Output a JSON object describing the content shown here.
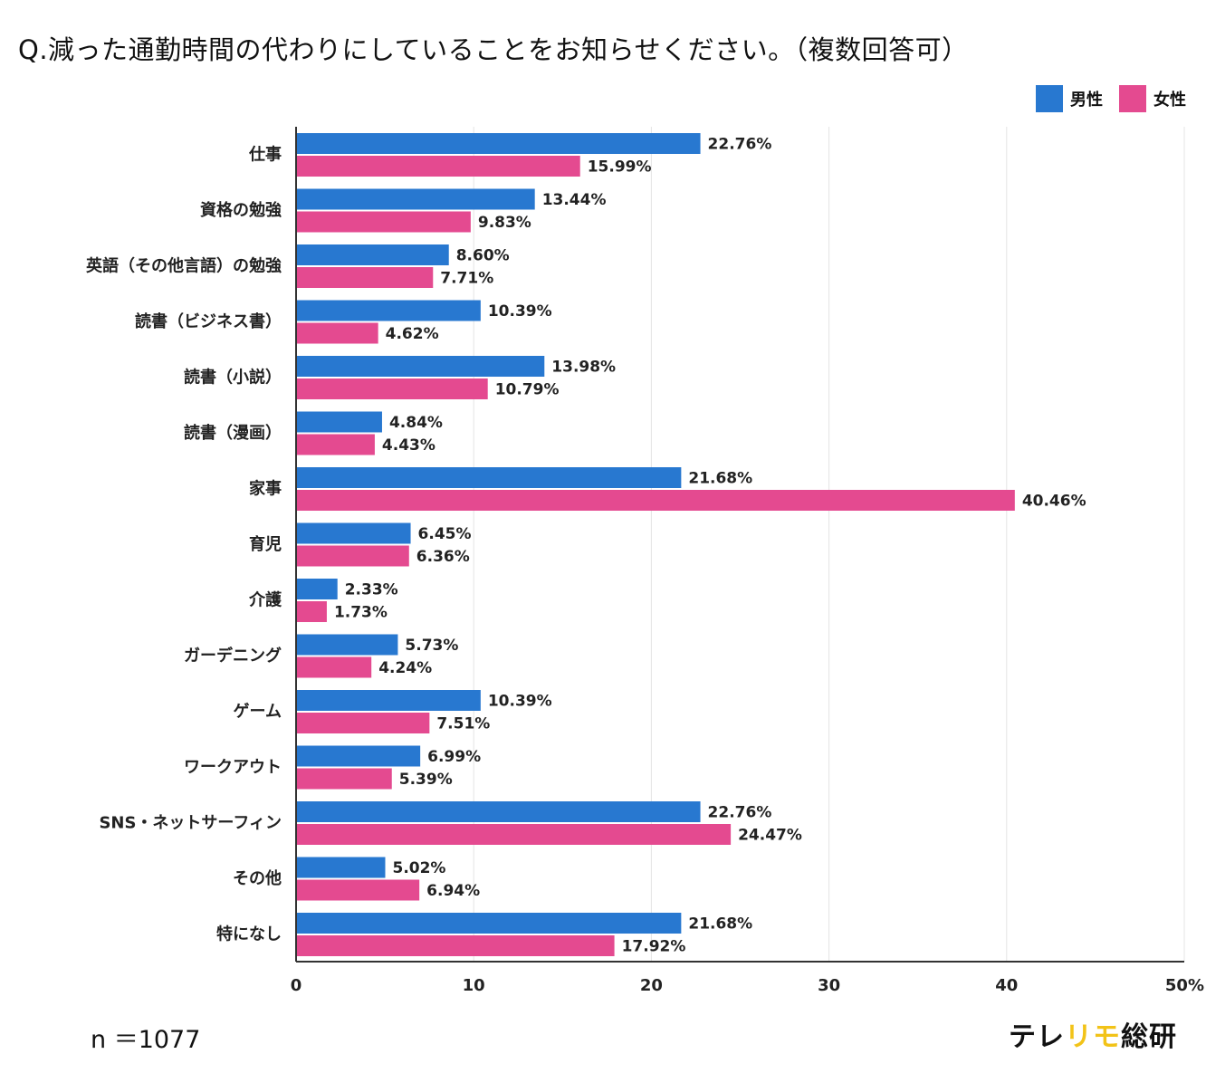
{
  "title": "Q.減った通勤時間の代わりにしていることをお知らせください。（複数回答可）",
  "sample_size": "n ＝1077",
  "brand": {
    "part1": "テレ",
    "part2": "リモ",
    "part3": "総研"
  },
  "colors": {
    "male": "#2878d0",
    "female": "#e44a90",
    "grid": "#e4e4e4",
    "axis": "#333333",
    "accent": "#f2c318"
  },
  "chart_data": {
    "type": "bar",
    "orientation": "horizontal",
    "title": "Q.減った通勤時間の代わりにしていることをお知らせください。（複数回答可）",
    "xlabel": "",
    "ylabel": "",
    "xlim": [
      0,
      50
    ],
    "grid": true,
    "legend_position": "top-right",
    "categories": [
      "仕事",
      "資格の勉強",
      "英語（その他言語）の勉強",
      "読書（ビジネス書）",
      "読書（小説）",
      "読書（漫画）",
      "家事",
      "育児",
      "介護",
      "ガーデニング",
      "ゲーム",
      "ワークアウト",
      "SNS・ネットサーフィン",
      "その他",
      "特になし"
    ],
    "series": [
      {
        "name": "男性",
        "values": [
          22.76,
          13.44,
          8.6,
          10.39,
          13.98,
          4.84,
          21.68,
          6.45,
          2.33,
          5.73,
          10.39,
          6.99,
          22.76,
          5.02,
          21.68
        ],
        "labels": [
          "22.76%",
          "13.44%",
          "8.60%",
          "10.39%",
          "13.98%",
          "4.84%",
          "21.68%",
          "6.45%",
          "2.33%",
          "5.73%",
          "10.39%",
          "6.99%",
          "22.76%",
          "5.02%",
          "21.68%"
        ]
      },
      {
        "name": "女性",
        "values": [
          15.99,
          9.83,
          7.71,
          4.62,
          10.79,
          4.43,
          40.46,
          6.36,
          1.73,
          4.24,
          7.51,
          5.39,
          24.47,
          6.94,
          17.92
        ],
        "labels": [
          "15.99%",
          "9.83%",
          "7.71%",
          "4.62%",
          "10.79%",
          "4.43%",
          "40.46%",
          "6.36%",
          "1.73%",
          "4.24%",
          "7.51%",
          "5.39%",
          "24.47%",
          "6.94%",
          "17.92%"
        ]
      }
    ],
    "ticks": [
      0,
      10,
      20,
      30,
      40,
      50
    ],
    "tick_labels": [
      "0",
      "10",
      "20",
      "30",
      "40",
      "50%"
    ]
  }
}
